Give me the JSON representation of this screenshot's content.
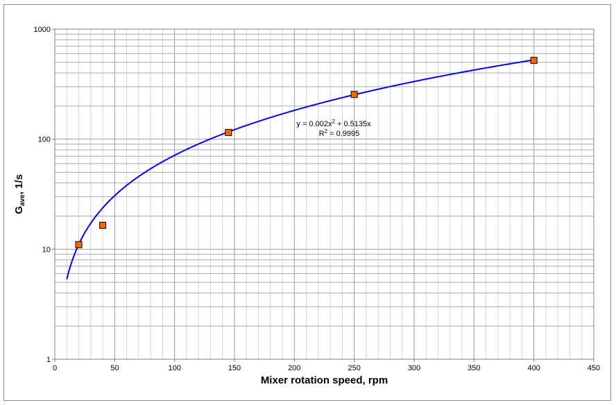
{
  "chart_data": {
    "type": "scatter",
    "title": "",
    "xlabel": "Mixer rotation speed, rpm",
    "ylabel": {
      "main": "G",
      "sub": "ave",
      "rest": ", 1/s"
    },
    "xlim": [
      0,
      450
    ],
    "ylim": [
      1,
      1000
    ],
    "yscale": "log",
    "grid": true,
    "legend": "none",
    "x_ticks": [
      "0",
      "50",
      "100",
      "150",
      "200",
      "250",
      "300",
      "350",
      "400",
      "450"
    ],
    "y_ticks": [
      "1",
      "10",
      "100",
      "1000"
    ],
    "series": [
      {
        "type": "scatter",
        "marker": "square",
        "color": "#ff6600",
        "edge_color": "#000000",
        "x": [
          20,
          40,
          145,
          250,
          400
        ],
        "y": [
          11,
          16.5,
          115,
          255,
          520
        ]
      },
      {
        "type": "line",
        "color": "#0000ff",
        "fit": "polynomial",
        "coefficients": {
          "a": 0.002,
          "b": 0.5135,
          "c": 0
        },
        "x_range": [
          10,
          400
        ]
      }
    ],
    "annotations": {
      "equation": {
        "prefix": "y = 0.002x",
        "sup": "2",
        "suffix": " + 0.5135x"
      },
      "r_squared": {
        "prefix": "R",
        "sup": "2",
        "suffix": " = 0.9995"
      }
    }
  }
}
